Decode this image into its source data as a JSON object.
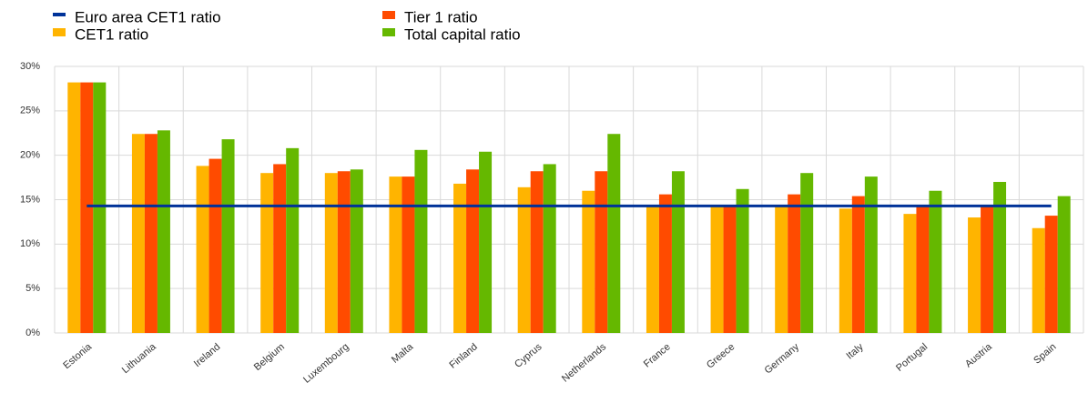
{
  "chart_data": {
    "type": "bar",
    "categories": [
      "Estonia",
      "Lithuania",
      "Ireland",
      "Belgium",
      "Luxembourg",
      "Malta",
      "Finland",
      "Cyprus",
      "Netherlands",
      "France",
      "Greece",
      "Germany",
      "Italy",
      "Portugal",
      "Austria",
      "Spain"
    ],
    "series": [
      {
        "name": "CET1 ratio",
        "color": "#ffb400",
        "values": [
          28.2,
          22.4,
          18.8,
          18.0,
          18.0,
          17.6,
          16.8,
          16.4,
          16.0,
          14.4,
          14.4,
          14.4,
          14.0,
          13.4,
          13.0,
          11.8
        ]
      },
      {
        "name": "Tier 1 ratio",
        "color": "#ff4b00",
        "values": [
          28.2,
          22.4,
          19.6,
          19.0,
          18.2,
          17.6,
          18.4,
          18.2,
          18.2,
          15.6,
          14.4,
          15.6,
          15.4,
          14.4,
          14.4,
          13.2
        ]
      },
      {
        "name": "Total capital ratio",
        "color": "#65b800",
        "values": [
          28.2,
          22.8,
          21.8,
          20.8,
          18.4,
          20.6,
          20.4,
          19.0,
          22.4,
          18.2,
          16.2,
          18.0,
          17.6,
          16.0,
          17.0,
          15.4
        ]
      },
      {
        "name": "Euro area CET1 ratio",
        "color": "#003299",
        "type": "line",
        "values": [
          14.3,
          14.3,
          14.3,
          14.3,
          14.3,
          14.3,
          14.3,
          14.3,
          14.3,
          14.3,
          14.3,
          14.3,
          14.3,
          14.3,
          14.3,
          14.3
        ]
      }
    ],
    "ylim": [
      0,
      30
    ],
    "yticks": [
      {
        "value": 0,
        "label": "0%"
      },
      {
        "value": 5,
        "label": "5%"
      },
      {
        "value": 10,
        "label": "10%"
      },
      {
        "value": 15,
        "label": "15%"
      },
      {
        "value": 20,
        "label": "20%"
      },
      {
        "value": 25,
        "label": "25%"
      },
      {
        "value": 30,
        "label": "30%"
      }
    ],
    "grid": true
  }
}
